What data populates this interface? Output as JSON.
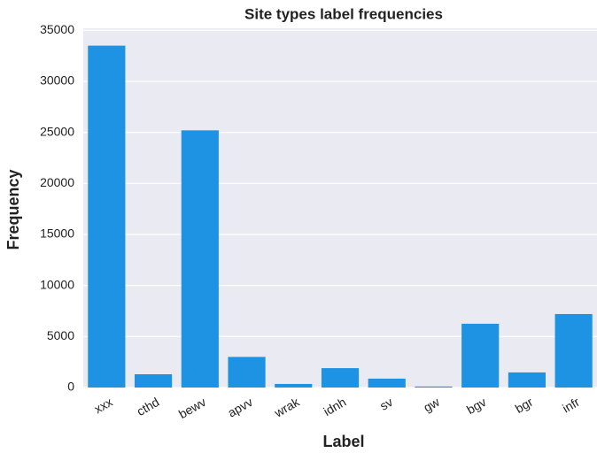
{
  "chart_data": {
    "type": "bar",
    "title": "Site types label frequencies",
    "x_label": "Label",
    "y_label": "Frequency",
    "categories": [
      "xxx",
      "cthd",
      "bewv",
      "apvv",
      "wrak",
      "idnh",
      "sv",
      "gw",
      "bgv",
      "bgr",
      "infr"
    ],
    "values": [
      33500,
      1300,
      25200,
      3000,
      350,
      1900,
      870,
      100,
      6250,
      1480,
      7200
    ],
    "color": "#1e93e3",
    "ylim": [
      0,
      35200
    ],
    "yticks": [
      0,
      5000,
      10000,
      15000,
      20000,
      25000,
      30000,
      35000
    ],
    "grid": true
  }
}
